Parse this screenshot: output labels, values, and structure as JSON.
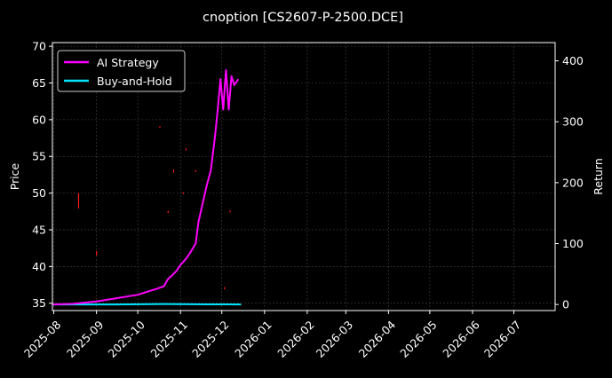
{
  "chart_data": {
    "type": "line",
    "title": "cnoption [CS2607-P-2500.DCE]",
    "ylabel_left": "Price",
    "ylabel_right": "Return",
    "ylim_left": [
      34,
      70.5
    ],
    "ylim_right": [
      -10,
      430
    ],
    "xlim": [
      "2025-07-31",
      "2026-07-31"
    ],
    "x_ticks": [
      "2025-08",
      "2025-09",
      "2025-10",
      "2025-11",
      "2025-12",
      "2026-01",
      "2026-02",
      "2026-03",
      "2026-04",
      "2026-05",
      "2026-06",
      "2026-07"
    ],
    "y_ticks_left": [
      35,
      40,
      45,
      50,
      55,
      60,
      65,
      70
    ],
    "y_ticks_right": [
      0,
      100,
      200,
      300,
      400
    ],
    "grid": true,
    "legend_position": "top-left",
    "colors": {
      "background": "#000000",
      "ai_strategy": "#ff00ff",
      "buy_and_hold": "#00e5ff",
      "price": "#ff1a1a",
      "grid": "#444444"
    },
    "series": [
      {
        "name": "AI Strategy",
        "axis": "right",
        "x": [
          "2025-07-31",
          "2025-08-15",
          "2025-09-01",
          "2025-09-15",
          "2025-10-01",
          "2025-10-15",
          "2025-10-20",
          "2025-10-23",
          "2025-10-26",
          "2025-10-29",
          "2025-11-01",
          "2025-11-05",
          "2025-11-08",
          "2025-11-12",
          "2025-11-14",
          "2025-11-17",
          "2025-11-20",
          "2025-11-23",
          "2025-11-26",
          "2025-11-28",
          "2025-11-30",
          "2025-12-02",
          "2025-12-04",
          "2025-12-06",
          "2025-12-08",
          "2025-12-10",
          "2025-12-13"
        ],
        "values": [
          0,
          1,
          5,
          10,
          16,
          26,
          30,
          42,
          48,
          55,
          65,
          75,
          85,
          100,
          135,
          165,
          195,
          220,
          275,
          320,
          370,
          320,
          385,
          320,
          375,
          360,
          370
        ]
      },
      {
        "name": "Buy-and-Hold",
        "axis": "right",
        "x": [
          "2025-07-31",
          "2025-09-15",
          "2025-10-20",
          "2025-11-20",
          "2025-12-15"
        ],
        "values": [
          0,
          0,
          0.8,
          0.2,
          0
        ]
      },
      {
        "name": "",
        "kind": "price-bars",
        "axis": "left",
        "points": [
          {
            "date": "2025-08-19",
            "low": 47.9,
            "high": 50.0
          },
          {
            "date": "2025-09-01",
            "low": 41.5,
            "high": 42.1
          },
          {
            "date": "2025-10-17",
            "low": 58.9,
            "high": 59.1
          },
          {
            "date": "2025-10-23",
            "low": 47.3,
            "high": 47.6
          },
          {
            "date": "2025-10-27",
            "low": 52.8,
            "high": 53.2
          },
          {
            "date": "2025-11-03",
            "low": 49.9,
            "high": 50.1
          },
          {
            "date": "2025-11-05",
            "low": 55.8,
            "high": 56.1
          },
          {
            "date": "2025-11-12",
            "low": 52.9,
            "high": 53.1
          },
          {
            "date": "2025-12-03",
            "low": 36.9,
            "high": 37.2
          },
          {
            "date": "2025-12-07",
            "low": 47.4,
            "high": 47.6
          }
        ]
      }
    ]
  }
}
